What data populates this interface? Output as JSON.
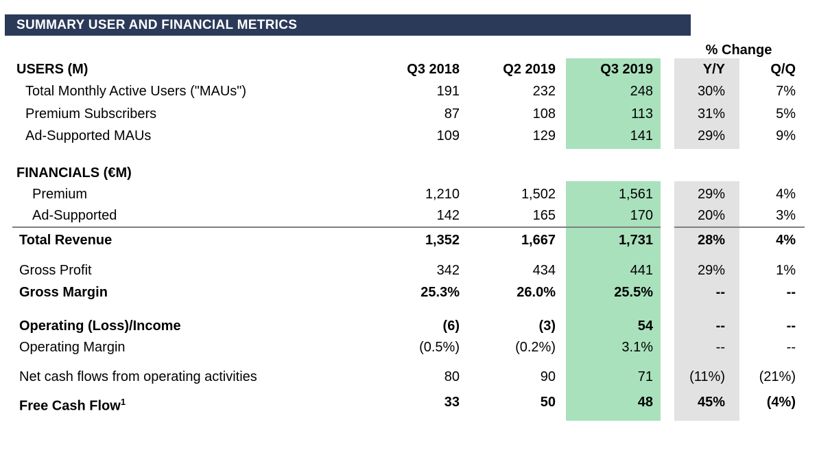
{
  "header": {
    "title": "SUMMARY USER AND FINANCIAL METRICS",
    "pct_change_label": "% Change"
  },
  "colors": {
    "title_bar_navy": "#2b3a59",
    "highlight_green": "#a9e1bd",
    "highlight_gray": "#e2e2e2",
    "divider_gray": "#7f7f7f"
  },
  "rows": [
    {
      "label": "USERS (M)",
      "c1": "Q3 2018",
      "c2": "Q2 2019",
      "c3": "Q3 2019",
      "c4": "Y/Y",
      "c5": "Q/Q"
    },
    {
      "label": "Total Monthly Active Users (\"MAUs\")",
      "c1": "191",
      "c2": "232",
      "c3": "248",
      "c4": "30%",
      "c5": "7%"
    },
    {
      "label": "Premium Subscribers",
      "c1": "87",
      "c2": "108",
      "c3": "113",
      "c4": "31%",
      "c5": "5%"
    },
    {
      "label": "Ad-Supported MAUs",
      "c1": "109",
      "c2": "129",
      "c3": "141",
      "c4": "29%",
      "c5": "9%"
    },
    {
      "label": "FINANCIALS (€M)",
      "c1": "",
      "c2": "",
      "c3": "",
      "c4": "",
      "c5": ""
    },
    {
      "label": "Premium",
      "c1": "1,210",
      "c2": "1,502",
      "c3": "1,561",
      "c4": "29%",
      "c5": "4%"
    },
    {
      "label": "Ad-Supported",
      "c1": "142",
      "c2": "165",
      "c3": "170",
      "c4": "20%",
      "c5": "3%"
    },
    {
      "label": "Total Revenue",
      "c1": "1,352",
      "c2": "1,667",
      "c3": "1,731",
      "c4": "28%",
      "c5": "4%"
    },
    {
      "label": "Gross Profit",
      "c1": "342",
      "c2": "434",
      "c3": "441",
      "c4": "29%",
      "c5": "1%"
    },
    {
      "label": "Gross Margin",
      "c1": "25.3%",
      "c2": "26.0%",
      "c3": "25.5%",
      "c4": "--",
      "c5": "--"
    },
    {
      "label": "Operating (Loss)/Income",
      "c1": "(6)",
      "c2": "(3)",
      "c3": "54",
      "c4": "--",
      "c5": "--"
    },
    {
      "label": "Operating Margin",
      "c1": "(0.5%)",
      "c2": "(0.2%)",
      "c3": "3.1%",
      "c4": "--",
      "c5": "--"
    },
    {
      "label": "Net cash flows from operating activities",
      "c1": "80",
      "c2": "90",
      "c3": "71",
      "c4": "(11%)",
      "c5": "(21%)"
    },
    {
      "label": "Free Cash Flow",
      "sup": "1",
      "c1": "33",
      "c2": "50",
      "c3": "48",
      "c4": "45%",
      "c5": "(4%)"
    }
  ]
}
